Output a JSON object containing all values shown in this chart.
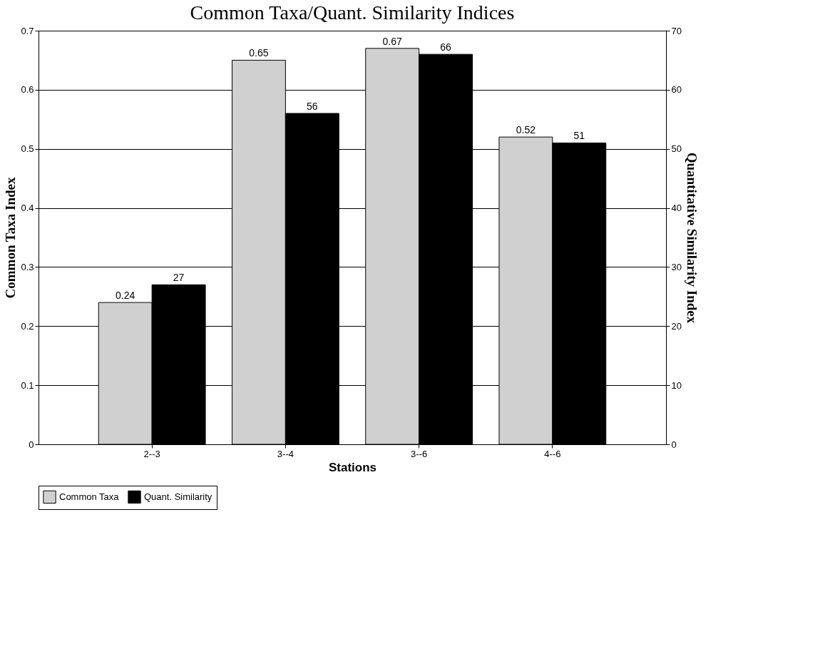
{
  "chart_data": {
    "type": "bar",
    "title": "Common Taxa/Quant. Similarity Indices",
    "xlabel": "Stations",
    "ylabel": "Common Taxa Index",
    "y2label": "Quantitative Similarity Index",
    "categories": [
      "2--3",
      "3--4",
      "3--6",
      "4--6"
    ],
    "series": [
      {
        "name": "Common Taxa",
        "color": "#d0d0d0",
        "values": [
          0.24,
          0.65,
          0.67,
          0.52
        ]
      },
      {
        "name": "Quant. Similarity",
        "color": "#000000",
        "values": [
          27,
          56,
          66,
          51
        ],
        "axis": "y2"
      }
    ],
    "ylim": [
      0,
      0.7
    ],
    "yticks": [
      0,
      0.1,
      0.2,
      0.3,
      0.4,
      0.5,
      0.6,
      0.7
    ],
    "y2lim": [
      0,
      70
    ],
    "y2ticks": [
      0,
      10,
      20,
      30,
      40,
      50,
      60,
      70
    ],
    "data_labels": true,
    "grid": "y",
    "legend": "bottom"
  }
}
